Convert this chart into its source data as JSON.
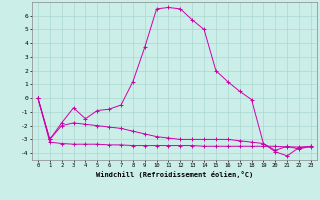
{
  "xlabel": "Windchill (Refroidissement éolien,°C)",
  "bg_color": "#cceee8",
  "line_color": "#cc00aa",
  "grid_color": "#aad8d0",
  "x": [
    0,
    1,
    2,
    3,
    4,
    5,
    6,
    7,
    8,
    9,
    10,
    11,
    12,
    13,
    14,
    15,
    16,
    17,
    18,
    19,
    20,
    21,
    22,
    23
  ],
  "line1": [
    0,
    -3.0,
    -1.8,
    -0.7,
    -1.5,
    -0.9,
    -0.8,
    -0.5,
    1.2,
    3.7,
    6.5,
    6.6,
    6.5,
    5.7,
    5.0,
    2.0,
    1.2,
    0.5,
    -0.1,
    -3.3,
    -3.9,
    -4.2,
    -3.6,
    -3.5
  ],
  "line2": [
    0,
    -3.0,
    -2.0,
    -1.8,
    -1.9,
    -2.0,
    -2.1,
    -2.2,
    -2.4,
    -2.6,
    -2.8,
    -2.9,
    -3.0,
    -3.0,
    -3.0,
    -3.0,
    -3.0,
    -3.1,
    -3.2,
    -3.3,
    -3.8,
    -3.5,
    -3.7,
    -3.5
  ],
  "line3": [
    0,
    -3.2,
    -3.3,
    -3.35,
    -3.35,
    -3.35,
    -3.4,
    -3.4,
    -3.45,
    -3.45,
    -3.45,
    -3.45,
    -3.45,
    -3.45,
    -3.5,
    -3.5,
    -3.5,
    -3.5,
    -3.5,
    -3.5,
    -3.5,
    -3.55,
    -3.55,
    -3.55
  ],
  "ylim": [
    -4.5,
    7.0
  ],
  "xlim": [
    -0.5,
    23.5
  ],
  "yticks": [
    -4,
    -3,
    -2,
    -1,
    0,
    1,
    2,
    3,
    4,
    5,
    6
  ],
  "xticks": [
    0,
    1,
    2,
    3,
    4,
    5,
    6,
    7,
    8,
    9,
    10,
    11,
    12,
    13,
    14,
    15,
    16,
    17,
    18,
    19,
    20,
    21,
    22,
    23
  ]
}
